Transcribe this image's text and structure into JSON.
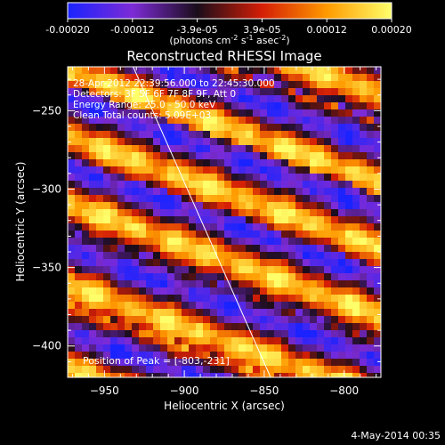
{
  "colorbar": {
    "tick_labels": [
      "-0.00020",
      "-0.00012",
      "-3.9e-05",
      "3.9e-05",
      "0.00012",
      "0.00020"
    ],
    "unit_main": "(photons cm",
    "unit_exp1": "-2",
    "unit_mid": " s",
    "unit_exp2": "-1",
    "unit_end": " asec",
    "unit_exp3": "-2",
    "unit_close": ")"
  },
  "chart_data": {
    "type": "heatmap",
    "title": "Reconstructed RHESSI Image",
    "xlabel": "Heliocentric X (arcsec)",
    "ylabel": "Heliocentric Y (arcsec)",
    "xlim": [
      -973,
      -777
    ],
    "ylim": [
      -420,
      -222
    ],
    "x_ticks": [
      -950,
      -900,
      -850,
      -800
    ],
    "y_ticks": [
      -400,
      -350,
      -300,
      -250
    ],
    "info_lines": [
      "28-Apr-2012 22:39:56.000 to 22:45:30.000",
      "Detectors: 3F 5F 6F 7F 8F 9F, Att 0",
      "Energy Range: 25.0 - 50.0 keV",
      "Clean     Total counts: 5.09E+03"
    ],
    "peak_label": "Position of Peak = [-803,-231]",
    "limb_line": [
      {
        "x": -932,
        "y": -222
      },
      {
        "x": -846,
        "y": -420
      }
    ],
    "colormap": [
      "#1a23ff",
      "#7d2bd6",
      "#1a0d1a",
      "#d41e06",
      "#ff9a00",
      "#ffff6a"
    ],
    "fringe_angle_deg": 70,
    "fringe_period_arcsec": 44,
    "fringe_phase": [
      0.13,
      0.0,
      -0.11,
      -0.03,
      0.08,
      -0.12,
      0.03
    ]
  },
  "timestamp": "4-May-2014 00:35"
}
